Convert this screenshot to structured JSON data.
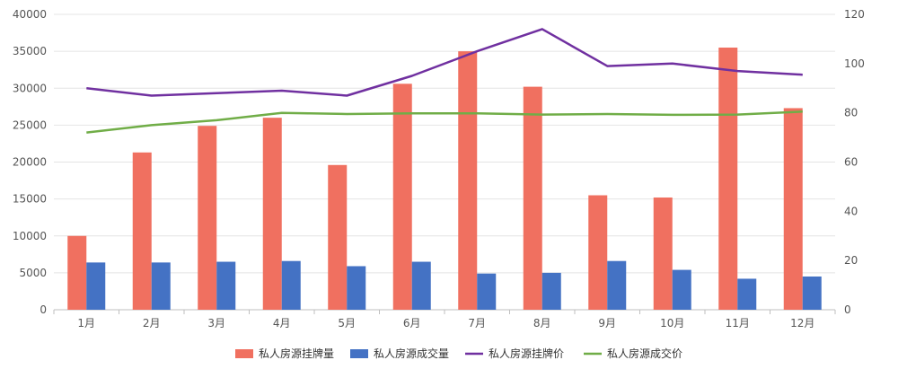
{
  "chart_data": {
    "type": "bar",
    "categories": [
      "1月",
      "2月",
      "3月",
      "4月",
      "5月",
      "6月",
      "7月",
      "8月",
      "9月",
      "10月",
      "11月",
      "12月"
    ],
    "y_left": {
      "min": 0,
      "max": 40000,
      "step": 5000
    },
    "y_right": {
      "min": 0,
      "max": 120,
      "step": 20
    },
    "grid": true,
    "legend_position": "bottom",
    "series": [
      {
        "name": "私人房源挂牌量",
        "type": "bar",
        "axis": "left",
        "color": "#F07060",
        "values": [
          10000,
          21300,
          24900,
          26000,
          19600,
          30600,
          35000,
          30200,
          15500,
          15200,
          35500,
          27300
        ]
      },
      {
        "name": "私人房源成交量",
        "type": "bar",
        "axis": "left",
        "color": "#4472C4",
        "values": [
          6400,
          6400,
          6500,
          6600,
          5900,
          6500,
          4900,
          5000,
          6600,
          5400,
          4200,
          4500
        ]
      },
      {
        "name": "私人房源挂牌价",
        "type": "line",
        "axis": "right",
        "color": "#7030A0",
        "values": [
          90,
          87,
          88,
          89,
          87,
          95,
          105,
          114,
          99,
          100,
          97,
          95.5
        ]
      },
      {
        "name": "私人房源成交价",
        "type": "line",
        "axis": "right",
        "color": "#70AD47",
        "values": [
          72,
          75,
          77,
          80,
          79.5,
          79.8,
          79.8,
          79.3,
          79.5,
          79.2,
          79.3,
          80.5
        ]
      }
    ]
  }
}
